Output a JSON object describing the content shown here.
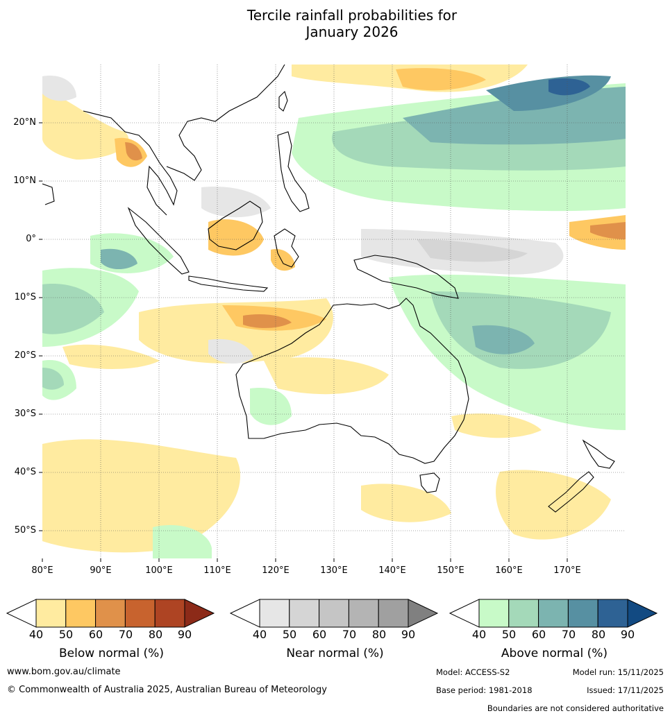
{
  "title_line1": "Tercile rainfall probabilities for",
  "title_line2": "January 2026",
  "lat_labels": [
    "20°N",
    "10°N",
    "0°",
    "10°S",
    "20°S",
    "30°S",
    "40°S",
    "50°S"
  ],
  "lon_labels": [
    "80°E",
    "90°E",
    "100°E",
    "110°E",
    "120°E",
    "130°E",
    "140°E",
    "150°E",
    "160°E",
    "170°E"
  ],
  "colorbars": [
    {
      "name": "below",
      "title": "Below normal (%)",
      "ticks": [
        "40",
        "50",
        "60",
        "70",
        "80",
        "90"
      ],
      "colors": [
        "#ffeba0",
        "#fec862",
        "#e0914a",
        "#c8632e",
        "#ae4423",
        "#8c2a18"
      ]
    },
    {
      "name": "near",
      "title": "Near normal (%)",
      "ticks": [
        "40",
        "50",
        "60",
        "70",
        "80",
        "90"
      ],
      "colors": [
        "#e6e6e6",
        "#d5d5d5",
        "#c5c5c5",
        "#b4b4b4",
        "#a0a0a0",
        "#808080"
      ]
    },
    {
      "name": "above",
      "title": "Above normal (%)",
      "ticks": [
        "40",
        "50",
        "60",
        "70",
        "80",
        "90"
      ],
      "colors": [
        "#c8fac8",
        "#a4d9b9",
        "#7cb4b0",
        "#5790a2",
        "#2e6294",
        "#124a82"
      ]
    }
  ],
  "footer": {
    "website": "www.bom.gov.au/climate",
    "copyright": "© Commonwealth of Australia 2025, Australian Bureau of Meteorology",
    "model": "Model: ACCESS-S2",
    "model_run": "Model run: 15/11/2025",
    "base_period": "Base period: 1981-2018",
    "issued": "Issued: 17/11/2025",
    "disclaimer": "Boundaries are not considered authoritative"
  }
}
